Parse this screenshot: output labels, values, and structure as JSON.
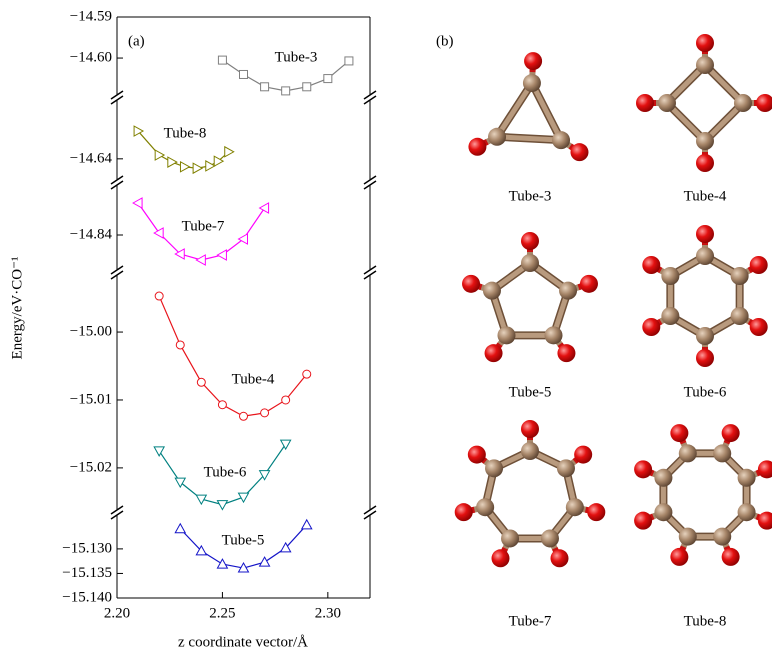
{
  "chart_data": {
    "type": "line",
    "panel_label": "(a)",
    "xlabel": "z coordinate vector/Å",
    "ylabel": "Energy/eV·CO⁻¹",
    "xlim": [
      2.2,
      2.32
    ],
    "xticks": [
      {
        "value": 2.2,
        "label": "2.20"
      },
      {
        "value": 2.25,
        "label": "2.25"
      },
      {
        "value": 2.3,
        "label": "2.30"
      }
    ],
    "panels": [
      {
        "ylim": [
          -14.609,
          -14.59
        ],
        "yticks": [
          {
            "value": -14.59,
            "label": "−14.59"
          },
          {
            "value": -14.6,
            "label": "−14.60"
          }
        ],
        "series": [
          {
            "name": "Tube-3",
            "color": "#808080",
            "marker": "square",
            "x": [
              2.25,
              2.26,
              2.27,
              2.28,
              2.29,
              2.3,
              2.31
            ],
            "values": [
              -14.6005,
              -14.604,
              -14.607,
              -14.608,
              -14.607,
              -14.605,
              -14.6007
            ]
          }
        ]
      },
      {
        "ylim": [
          -14.6445,
          -14.6275
        ],
        "yticks": [
          {
            "value": -14.64,
            "label": "−14.64"
          }
        ],
        "series": [
          {
            "name": "Tube-8",
            "color": "#808000",
            "marker": "triangle-right",
            "x": [
              2.21,
              2.22,
              2.226,
              2.232,
              2.238,
              2.244,
              2.248,
              2.253
            ],
            "values": [
              -14.6341,
              -14.6392,
              -14.6407,
              -14.6417,
              -14.642,
              -14.6415,
              -14.6405,
              -14.6385
            ]
          }
        ]
      },
      {
        "ylim": [
          -14.847,
          -14.83
        ],
        "yticks": [
          {
            "value": -14.84,
            "label": "−14.84"
          }
        ],
        "series": [
          {
            "name": "Tube-7",
            "color": "#ff00ff",
            "marker": "triangle-left",
            "x": [
              2.21,
              2.22,
              2.23,
              2.24,
              2.25,
              2.26,
              2.27
            ],
            "values": [
              -14.8336,
              -14.8396,
              -14.8438,
              -14.845,
              -14.844,
              -14.8408,
              -14.8346
            ]
          }
        ]
      },
      {
        "ylim": [
          -15.0262,
          -14.9916
        ],
        "yticks": [
          {
            "value": -15.0,
            "label": "−15.00"
          },
          {
            "value": -15.01,
            "label": "−15.01"
          },
          {
            "value": -15.02,
            "label": "−15.02"
          }
        ],
        "series": [
          {
            "name": "Tube-4",
            "color": "#e8141b",
            "marker": "circle",
            "x": [
              2.22,
              2.23,
              2.24,
              2.25,
              2.26,
              2.27,
              2.28,
              2.29
            ],
            "values": [
              -14.9947,
              -15.0019,
              -15.0074,
              -15.0107,
              -15.0124,
              -15.0119,
              -15.01,
              -15.0062
            ]
          },
          {
            "name": "Tube-6",
            "color": "#008080",
            "marker": "triangle-down",
            "x": [
              2.22,
              2.23,
              2.24,
              2.25,
              2.26,
              2.27,
              2.28
            ],
            "values": [
              -15.0175,
              -15.0221,
              -15.0246,
              -15.0254,
              -15.0243,
              -15.021,
              -15.0165
            ]
          }
        ]
      },
      {
        "ylim": [
          -15.14,
          -15.1231
        ],
        "yticks": [
          {
            "value": -15.13,
            "label": "−15.130"
          },
          {
            "value": -15.135,
            "label": "−15.135"
          },
          {
            "value": -15.14,
            "label": "−15.140"
          }
        ],
        "series": [
          {
            "name": "Tube-5",
            "color": "#1414c8",
            "marker": "triangle-up",
            "x": [
              2.23,
              2.24,
              2.25,
              2.26,
              2.27,
              2.28,
              2.29
            ],
            "values": [
              -15.1259,
              -15.1304,
              -15.1331,
              -15.1339,
              -15.1327,
              -15.1298,
              -15.1251
            ]
          }
        ]
      }
    ]
  },
  "structures": {
    "panel_label": "(b)",
    "items": [
      {
        "label": "Tube-3"
      },
      {
        "label": "Tube-4"
      },
      {
        "label": "Tube-5"
      },
      {
        "label": "Tube-6"
      },
      {
        "label": "Tube-7"
      },
      {
        "label": "Tube-8"
      }
    ]
  }
}
